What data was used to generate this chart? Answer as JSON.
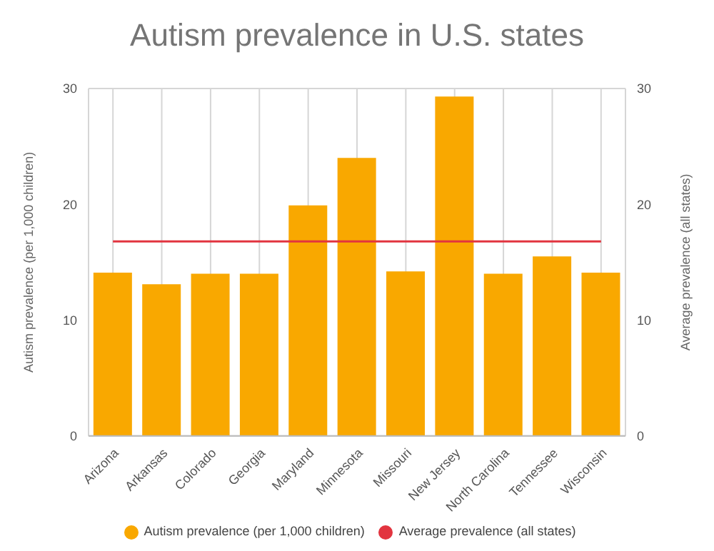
{
  "chart_data": {
    "type": "bar",
    "title": "Autism prevalence in U.S. states",
    "ylabel": "Autism prevalence (per 1,000 children)",
    "y2label": "Average prevalence (all states)",
    "categories": [
      "Arizona",
      "Arkansas",
      "Colorado",
      "Georgia",
      "Maryland",
      "Minnesota",
      "Missouri",
      "New Jersey",
      "North Carolina",
      "Tennessee",
      "Wisconsin"
    ],
    "series": [
      {
        "name": "Autism prevalence (per 1,000 children)",
        "color": "#f9a800",
        "values": [
          14.1,
          13.1,
          14,
          14,
          19.9,
          24,
          14.2,
          29.3,
          14,
          15.5,
          14.1
        ]
      },
      {
        "name": "Average prevalence (all states)",
        "type": "line",
        "axis": "y2",
        "color": "#e2343f",
        "values": [
          16.8,
          16.8,
          16.8,
          16.8,
          16.8,
          16.8,
          16.8,
          16.8,
          16.8,
          16.8,
          16.8
        ]
      }
    ],
    "ylim": [
      0,
      30
    ],
    "yticks": [
      0,
      10,
      20,
      30
    ],
    "y2lim": [
      0,
      30
    ],
    "y2ticks": [
      0,
      10,
      20,
      30
    ],
    "grid": true,
    "legend": "bottom",
    "marker": "none"
  }
}
